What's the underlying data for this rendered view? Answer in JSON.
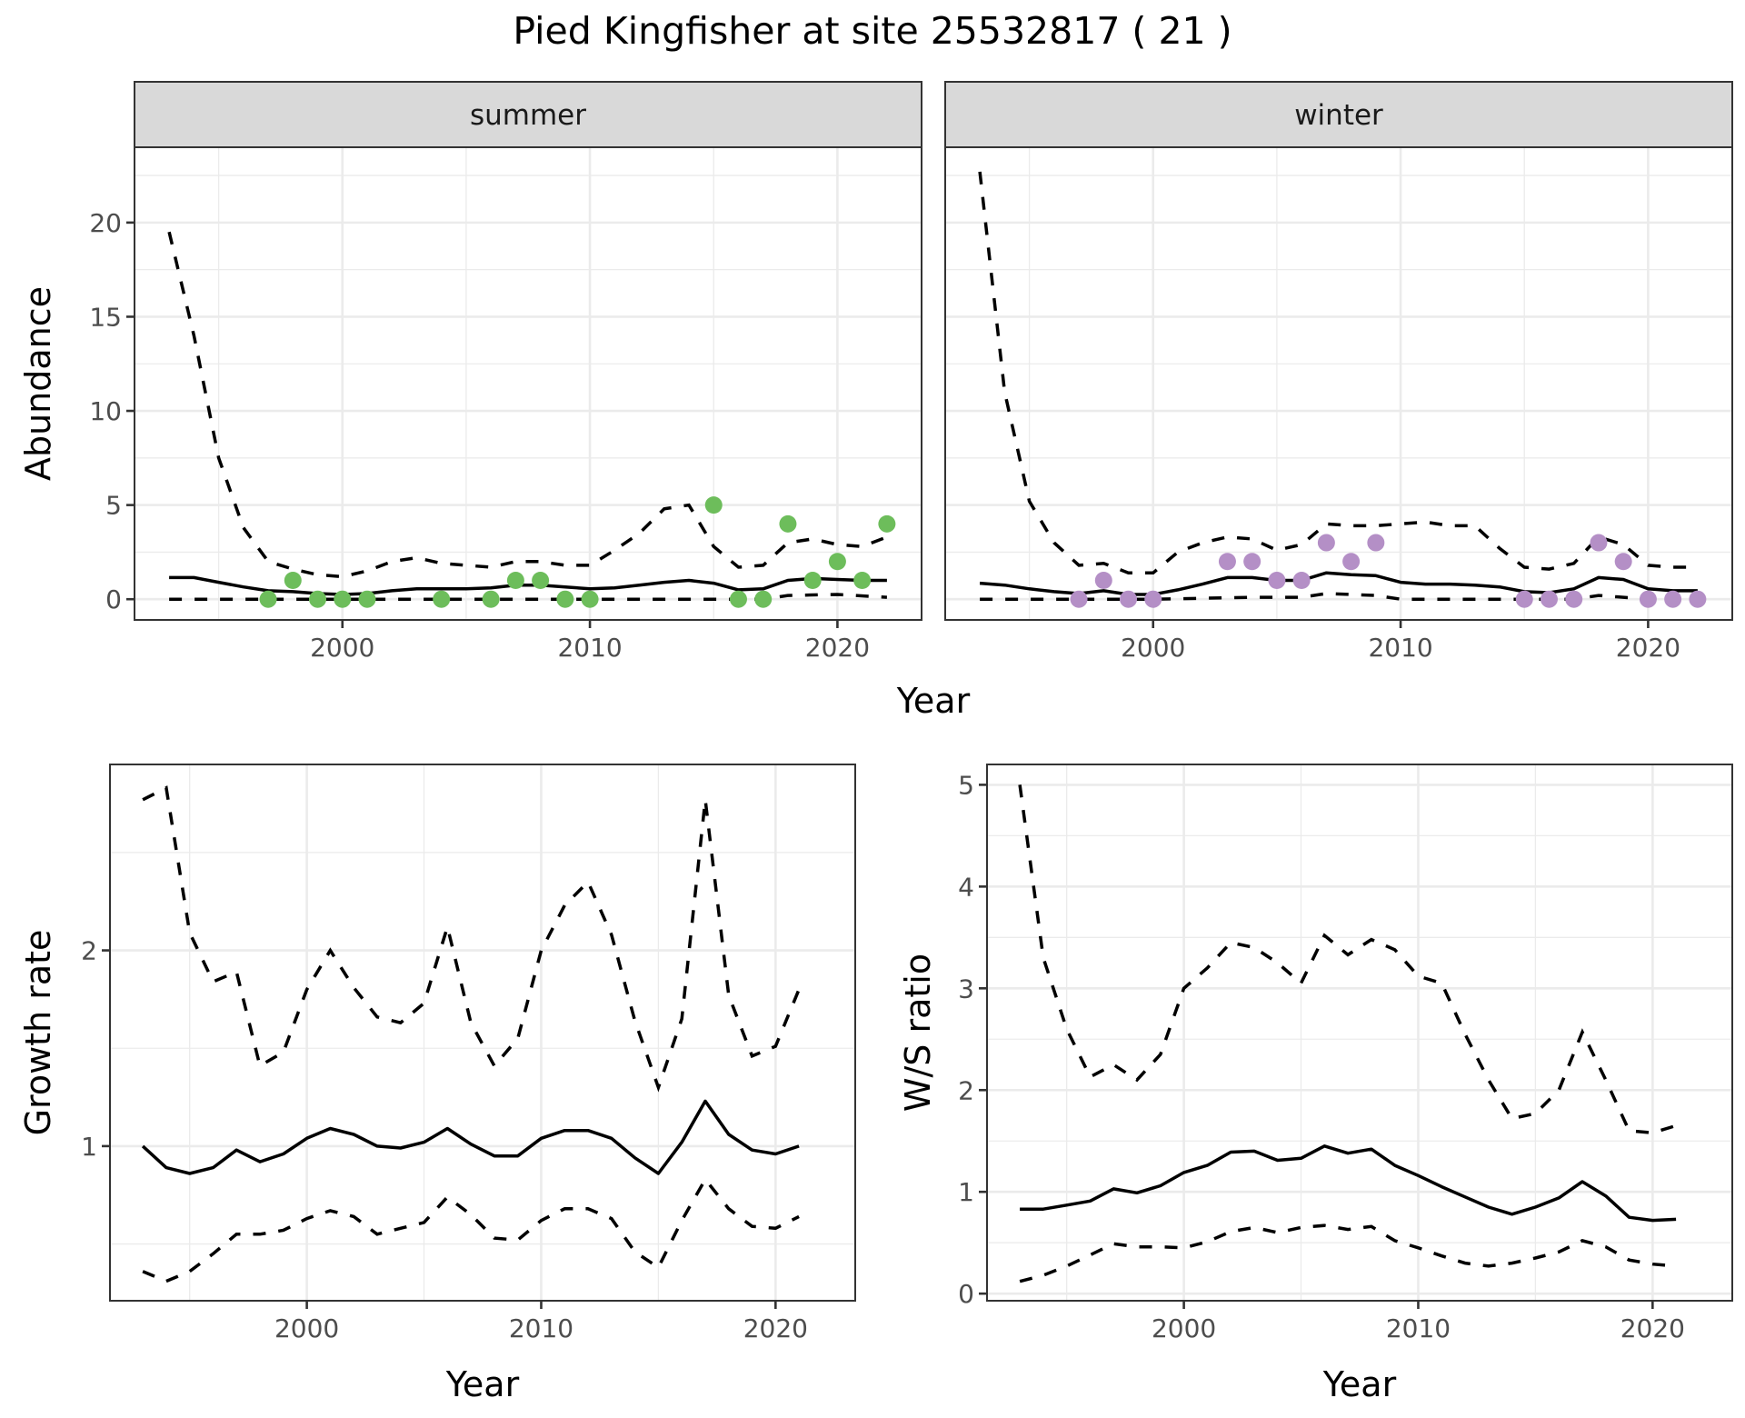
{
  "title": "Pied Kingfisher at site 25532817 ( 21 )",
  "colors": {
    "summer_points": "#6dbd5b",
    "winter_points": "#b48fc6",
    "strip_bg": "#d9d9d9",
    "grid": "#ebebeb"
  },
  "chart_data": [
    {
      "id": "abundance-summer",
      "type": "scatter+line",
      "facet": "summer",
      "xlabel": "Year",
      "ylabel": "Abundance",
      "xlim": [
        1991.6,
        2023.4
      ],
      "ylim": [
        -1.1,
        24.0
      ],
      "xticks": [
        2000,
        2010,
        2020
      ],
      "xticks_minor": [
        1995,
        2005,
        2015
      ],
      "yticks": [
        0,
        5,
        10,
        15,
        20
      ],
      "yticks_minor": [
        2.5,
        7.5,
        12.5,
        17.5,
        22.5
      ],
      "grid": true,
      "points": {
        "x": [
          1997,
          1998,
          1999,
          2000,
          2001,
          2004,
          2006,
          2007,
          2008,
          2009,
          2010,
          2015,
          2016,
          2017,
          2018,
          2019,
          2020,
          2021,
          2022
        ],
        "y": [
          0,
          1,
          0,
          0,
          0,
          0,
          0,
          1,
          1,
          0,
          0,
          5,
          0,
          0,
          4,
          1,
          2,
          1,
          4
        ]
      },
      "series": [
        {
          "name": "estimate",
          "style": "solid",
          "x": [
            1993,
            1994,
            1995,
            1996,
            1997,
            1998,
            1999,
            2000,
            2001,
            2002,
            2003,
            2004,
            2005,
            2006,
            2007,
            2008,
            2009,
            2010,
            2011,
            2012,
            2013,
            2014,
            2015,
            2016,
            2017,
            2018,
            2019,
            2020,
            2021,
            2022
          ],
          "y": [
            1.15,
            1.15,
            0.9,
            0.65,
            0.45,
            0.4,
            0.3,
            0.25,
            0.3,
            0.45,
            0.55,
            0.55,
            0.55,
            0.6,
            0.75,
            0.75,
            0.65,
            0.55,
            0.6,
            0.75,
            0.9,
            1.0,
            0.85,
            0.5,
            0.55,
            1.0,
            1.1,
            1.05,
            1.0,
            1.0
          ]
        },
        {
          "name": "upper",
          "style": "dashed",
          "x": [
            1993,
            1994,
            1995,
            1996,
            1997,
            1998,
            1999,
            2000,
            2001,
            2002,
            2003,
            2004,
            2005,
            2006,
            2007,
            2008,
            2009,
            2010,
            2011,
            2012,
            2013,
            2014,
            2015,
            2016,
            2017,
            2018,
            2019,
            2020,
            2021,
            2022
          ],
          "y": [
            19.5,
            14.0,
            7.5,
            3.8,
            2.0,
            1.6,
            1.3,
            1.2,
            1.5,
            2.0,
            2.2,
            1.9,
            1.8,
            1.7,
            2.0,
            2.0,
            1.8,
            1.8,
            2.6,
            3.5,
            4.8,
            5.0,
            2.8,
            1.7,
            1.8,
            3.0,
            3.2,
            2.9,
            2.8,
            3.3
          ]
        },
        {
          "name": "lower",
          "style": "dashed",
          "x": [
            1993,
            1996,
            2000,
            2005,
            2010,
            2015,
            2017,
            2018,
            2020,
            2022
          ],
          "y": [
            0,
            0,
            0,
            0,
            0,
            0,
            0,
            0.2,
            0.25,
            0.1
          ]
        }
      ]
    },
    {
      "id": "abundance-winter",
      "type": "scatter+line",
      "facet": "winter",
      "xlabel": "Year",
      "ylabel": "Abundance",
      "xlim": [
        1991.6,
        2023.4
      ],
      "ylim": [
        -1.1,
        24.0
      ],
      "xticks": [
        2000,
        2010,
        2020
      ],
      "xticks_minor": [
        1995,
        2005,
        2015
      ],
      "yticks": [
        0,
        5,
        10,
        15,
        20
      ],
      "yticks_minor": [
        2.5,
        7.5,
        12.5,
        17.5,
        22.5
      ],
      "grid": true,
      "points": {
        "x": [
          1997,
          1998,
          1999,
          2000,
          2003,
          2004,
          2005,
          2006,
          2007,
          2008,
          2009,
          2015,
          2016,
          2017,
          2018,
          2019,
          2020,
          2021,
          2022
        ],
        "y": [
          0,
          1,
          0,
          0,
          2,
          2,
          1,
          1,
          3,
          2,
          3,
          0,
          0,
          0,
          3,
          2,
          0,
          0,
          0
        ]
      },
      "series": [
        {
          "name": "estimate",
          "style": "solid",
          "x": [
            1993,
            1994,
            1995,
            1996,
            1997,
            1998,
            1999,
            2000,
            2001,
            2002,
            2003,
            2004,
            2005,
            2006,
            2007,
            2008,
            2009,
            2010,
            2011,
            2012,
            2013,
            2014,
            2015,
            2016,
            2017,
            2018,
            2019,
            2020,
            2021,
            2022
          ],
          "y": [
            0.85,
            0.75,
            0.55,
            0.4,
            0.3,
            0.45,
            0.25,
            0.25,
            0.5,
            0.8,
            1.15,
            1.15,
            1.0,
            1.0,
            1.4,
            1.3,
            1.25,
            0.9,
            0.8,
            0.8,
            0.75,
            0.65,
            0.4,
            0.35,
            0.55,
            1.15,
            1.05,
            0.55,
            0.45,
            0.45
          ]
        },
        {
          "name": "upper",
          "style": "dashed",
          "x": [
            1993,
            1994,
            1995,
            1996,
            1997,
            1998,
            1999,
            2000,
            2001,
            2002,
            2003,
            2004,
            2005,
            2006,
            2007,
            2008,
            2009,
            2010,
            2011,
            2012,
            2013,
            2014,
            2015,
            2016,
            2017,
            2018,
            2019,
            2020,
            2021,
            2022
          ],
          "y": [
            22.7,
            11.0,
            5.2,
            3.0,
            1.8,
            1.9,
            1.4,
            1.4,
            2.5,
            3.0,
            3.3,
            3.2,
            2.6,
            2.9,
            4.0,
            3.9,
            3.9,
            4.0,
            4.1,
            3.9,
            3.9,
            2.7,
            1.7,
            1.6,
            1.9,
            3.3,
            2.9,
            1.8,
            1.7,
            1.7
          ]
        },
        {
          "name": "lower",
          "style": "dashed",
          "x": [
            1993,
            1996,
            2000,
            2002,
            2004,
            2005,
            2006,
            2007,
            2008,
            2009,
            2010,
            2015,
            2017,
            2018,
            2020,
            2022
          ],
          "y": [
            0,
            0,
            0,
            0.05,
            0.1,
            0.1,
            0.1,
            0.3,
            0.25,
            0.2,
            0,
            0,
            0,
            0.2,
            0,
            0
          ]
        }
      ]
    },
    {
      "id": "growth-rate",
      "type": "line",
      "xlabel": "Year",
      "ylabel": "Growth rate",
      "xlim": [
        1991.6,
        2023.4
      ],
      "ylim": [
        0.21,
        2.95
      ],
      "xticks": [
        2000,
        2010,
        2020
      ],
      "xticks_minor": [
        1995,
        2005,
        2015
      ],
      "yticks": [
        1,
        2
      ],
      "yticks_minor": [
        0.5,
        1.5,
        2.5
      ],
      "grid": true,
      "series": [
        {
          "name": "estimate",
          "style": "solid",
          "x": [
            1993,
            1994,
            1995,
            1996,
            1997,
            1998,
            1999,
            2000,
            2001,
            2002,
            2003,
            2004,
            2005,
            2006,
            2007,
            2008,
            2009,
            2010,
            2011,
            2012,
            2013,
            2014,
            2015,
            2016,
            2017,
            2018,
            2019,
            2020,
            2021
          ],
          "y": [
            1.0,
            0.89,
            0.86,
            0.89,
            0.98,
            0.92,
            0.96,
            1.04,
            1.09,
            1.06,
            1.0,
            0.99,
            1.02,
            1.09,
            1.01,
            0.95,
            0.95,
            1.04,
            1.08,
            1.08,
            1.04,
            0.94,
            0.86,
            1.02,
            1.23,
            1.06,
            0.98,
            0.96,
            1.0
          ]
        },
        {
          "name": "upper",
          "style": "dashed",
          "x": [
            1993,
            1994,
            1995,
            1996,
            1997,
            1998,
            1999,
            2000,
            2001,
            2002,
            2003,
            2004,
            2005,
            2006,
            2007,
            2008,
            2009,
            2010,
            2011,
            2012,
            2013,
            2014,
            2015,
            2016,
            2017,
            2018,
            2019,
            2020,
            2021
          ],
          "y": [
            2.77,
            2.83,
            2.09,
            1.84,
            1.89,
            1.41,
            1.48,
            1.8,
            2.0,
            1.81,
            1.66,
            1.63,
            1.73,
            2.12,
            1.63,
            1.41,
            1.55,
            2.0,
            2.23,
            2.35,
            2.08,
            1.64,
            1.3,
            1.65,
            2.77,
            1.77,
            1.46,
            1.51,
            1.8
          ]
        },
        {
          "name": "lower",
          "style": "dashed",
          "x": [
            1993,
            1994,
            1995,
            1996,
            1997,
            1998,
            1999,
            2000,
            2001,
            2002,
            2003,
            2004,
            2005,
            2006,
            2007,
            2008,
            2009,
            2010,
            2011,
            2012,
            2013,
            2014,
            2015,
            2016,
            2017,
            2018,
            2019,
            2020,
            2021
          ],
          "y": [
            0.36,
            0.31,
            0.36,
            0.45,
            0.55,
            0.55,
            0.57,
            0.63,
            0.67,
            0.64,
            0.55,
            0.58,
            0.61,
            0.74,
            0.65,
            0.53,
            0.52,
            0.62,
            0.68,
            0.68,
            0.63,
            0.46,
            0.38,
            0.62,
            0.83,
            0.68,
            0.59,
            0.58,
            0.64
          ]
        }
      ]
    },
    {
      "id": "ws-ratio",
      "type": "line",
      "xlabel": "Year",
      "ylabel": "W/S ratio",
      "xlim": [
        1991.6,
        2023.4
      ],
      "ylim": [
        -0.07,
        5.2
      ],
      "xticks": [
        2000,
        2010,
        2020
      ],
      "xticks_minor": [
        1995,
        2005,
        2015
      ],
      "yticks": [
        0,
        1,
        2,
        3,
        4,
        5
      ],
      "yticks_minor": [
        0.5,
        1.5,
        2.5,
        3.5,
        4.5
      ],
      "grid": true,
      "series": [
        {
          "name": "estimate",
          "style": "solid",
          "x": [
            1993,
            1994,
            1995,
            1996,
            1997,
            1998,
            1999,
            2000,
            2001,
            2002,
            2003,
            2004,
            2005,
            2006,
            2007,
            2008,
            2009,
            2010,
            2011,
            2012,
            2013,
            2014,
            2015,
            2016,
            2017,
            2018,
            2019,
            2020,
            2021
          ],
          "y": [
            0.83,
            0.83,
            0.87,
            0.91,
            1.03,
            0.99,
            1.06,
            1.19,
            1.26,
            1.39,
            1.4,
            1.31,
            1.33,
            1.45,
            1.38,
            1.42,
            1.26,
            1.16,
            1.05,
            0.95,
            0.85,
            0.78,
            0.85,
            0.94,
            1.1,
            0.96,
            0.75,
            0.72,
            0.73
          ]
        },
        {
          "name": "upper",
          "style": "dashed",
          "x": [
            1993,
            1994,
            1995,
            1996,
            1997,
            1998,
            1999,
            2000,
            2001,
            2002,
            2003,
            2004,
            2005,
            2006,
            2007,
            2008,
            2009,
            2010,
            2011,
            2012,
            2013,
            2014,
            2015,
            2016,
            2017,
            2018,
            2019,
            2020,
            2021
          ],
          "y": [
            5.0,
            3.3,
            2.6,
            2.13,
            2.25,
            2.1,
            2.35,
            3.0,
            3.2,
            3.45,
            3.4,
            3.25,
            3.05,
            3.52,
            3.33,
            3.48,
            3.38,
            3.12,
            3.05,
            2.55,
            2.1,
            1.72,
            1.77,
            2.0,
            2.57,
            2.1,
            1.6,
            1.58,
            1.65
          ]
        },
        {
          "name": "lower",
          "style": "dashed",
          "x": [
            1993,
            1994,
            1995,
            1996,
            1997,
            1998,
            1999,
            2000,
            2001,
            2002,
            2003,
            2004,
            2005,
            2006,
            2007,
            2008,
            2009,
            2010,
            2011,
            2012,
            2013,
            2014,
            2015,
            2016,
            2017,
            2018,
            2019,
            2020,
            2021
          ],
          "y": [
            0.12,
            0.18,
            0.27,
            0.38,
            0.49,
            0.46,
            0.46,
            0.45,
            0.51,
            0.61,
            0.65,
            0.6,
            0.65,
            0.67,
            0.63,
            0.66,
            0.52,
            0.45,
            0.37,
            0.3,
            0.27,
            0.3,
            0.35,
            0.41,
            0.52,
            0.46,
            0.33,
            0.29,
            0.27
          ]
        }
      ]
    }
  ],
  "panels": {
    "summer": {
      "strip_label": "summer"
    },
    "winter": {
      "strip_label": "winter"
    },
    "abundance_y_title": "Abundance",
    "abundance_x_title": "Year",
    "growth_y_title": "Growth rate",
    "growth_x_title": "Year",
    "ws_y_title": "W/S ratio",
    "ws_x_title": "Year"
  }
}
